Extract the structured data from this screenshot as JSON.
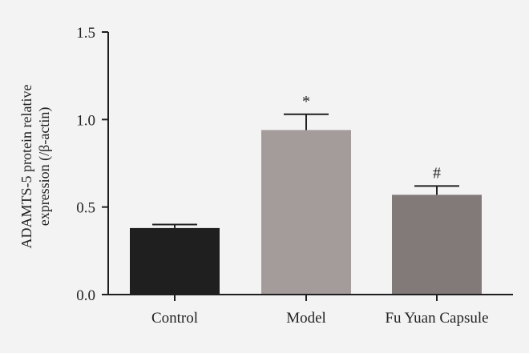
{
  "chart_data": {
    "type": "bar",
    "title": "",
    "xlabel": "",
    "ylabel_lines": [
      "ADAMTS-5 protein relative",
      "expression (/β-actin)"
    ],
    "categories": [
      "Control",
      "Model",
      "Fu Yuan Capsule"
    ],
    "values": [
      0.38,
      0.94,
      0.57
    ],
    "errors": [
      0.02,
      0.09,
      0.05
    ],
    "significance": [
      "",
      "*",
      "#"
    ],
    "bar_colors": [
      "#1f1f1f",
      "#a39c9b",
      "#817a78"
    ],
    "ylim": [
      0,
      1.5
    ],
    "yticks": [
      0.0,
      0.5,
      1.0,
      1.5
    ],
    "ytick_labels": [
      "0.0",
      "0.5",
      "1.0",
      "1.5"
    ],
    "grid": false,
    "legend": "none"
  }
}
